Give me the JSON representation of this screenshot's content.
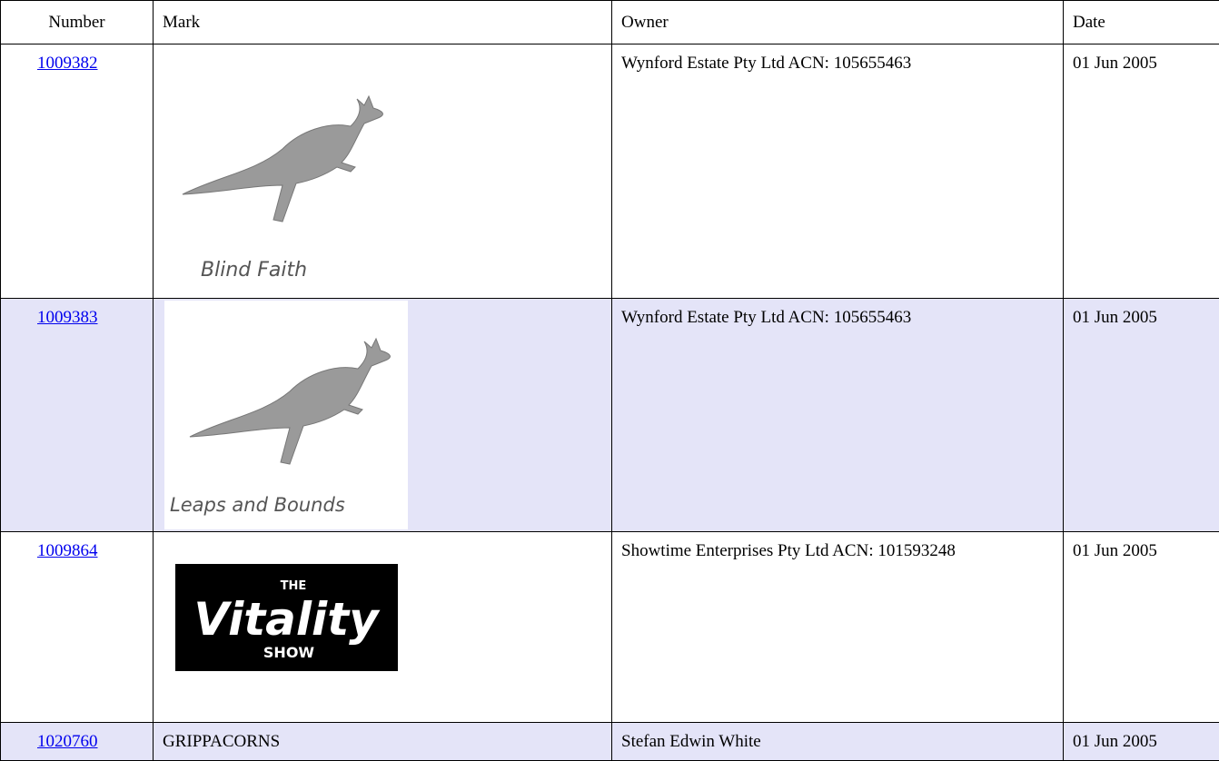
{
  "table": {
    "headers": [
      "Number",
      "Mark",
      "Owner",
      "Date"
    ],
    "rows": [
      {
        "number": "1009382",
        "mark": [
          "Blind Faith"
        ],
        "owner": "Wynford Estate Pty Ltd ACN: 105655463",
        "date": "01 Jun 2005"
      },
      {
        "number": "1009383",
        "mark": [
          "Leaps and Bounds"
        ],
        "owner": "Wynford Estate Pty Ltd ACN: 105655463",
        "date": "01 Jun 2005"
      },
      {
        "number": "1009864",
        "mark": [
          "THE",
          "Vitality",
          "SHOW"
        ],
        "owner": "Showtime Enterprises Pty Ltd ACN: 101593248",
        "date": "01 Jun 2005"
      },
      {
        "number": "1020760",
        "mark": [
          "GRIPPACORNS"
        ],
        "owner": "Stefan Edwin White",
        "date": "01 Jun 2005"
      }
    ]
  }
}
